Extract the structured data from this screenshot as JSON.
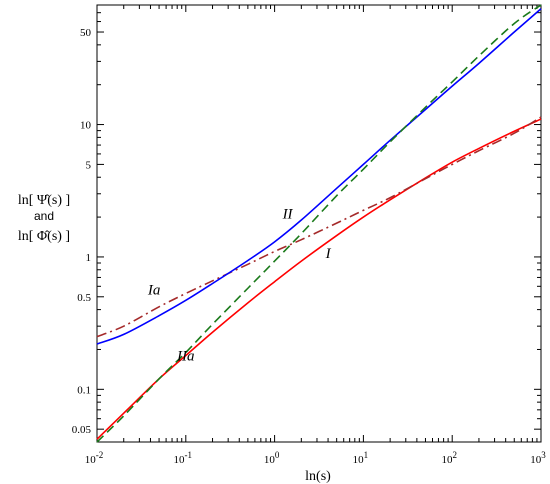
{
  "chart_data": {
    "type": "line",
    "title": "",
    "xlabel": "ln(s)",
    "ylabel_lines": [
      "ln[ Ψ̂(s) ]",
      "and",
      "ln[ Φ̂(s) ]"
    ],
    "x_scale": "log",
    "y_scale": "log",
    "xlim": [
      0.01,
      1000
    ],
    "ylim": [
      0.04,
      80
    ],
    "x_ticks": [
      {
        "value": 0.01,
        "base": "10",
        "exp": "-2"
      },
      {
        "value": 0.1,
        "base": "10",
        "exp": "-1"
      },
      {
        "value": 1,
        "base": "10",
        "exp": "0"
      },
      {
        "value": 10,
        "base": "10",
        "exp": "1"
      },
      {
        "value": 100,
        "base": "10",
        "exp": "2"
      },
      {
        "value": 1000,
        "base": "10",
        "exp": "3"
      }
    ],
    "y_ticks": [
      {
        "value": 0.05,
        "label": "0.05"
      },
      {
        "value": 0.1,
        "label": "0.1"
      },
      {
        "value": 0.5,
        "label": "0.5"
      },
      {
        "value": 1,
        "label": "1"
      },
      {
        "value": 5,
        "label": "5"
      },
      {
        "value": 10,
        "label": "10"
      },
      {
        "value": 50,
        "label": "50"
      }
    ],
    "grid": false,
    "series": [
      {
        "name": "I",
        "color": "#ff0000",
        "dash": "solid",
        "x": [
          0.01,
          0.02,
          0.05,
          0.1,
          0.2,
          0.5,
          1,
          2,
          5,
          10,
          20,
          50,
          100,
          200,
          500,
          1000
        ],
        "y": [
          0.042,
          0.066,
          0.12,
          0.18,
          0.27,
          0.45,
          0.65,
          0.93,
          1.45,
          2.0,
          2.7,
          3.95,
          5.2,
          6.6,
          8.9,
          11.0
        ]
      },
      {
        "name": "Ia",
        "color": "#a52a2a",
        "dash": "dashdot",
        "x": [
          0.01,
          0.02,
          0.05,
          0.1,
          0.2,
          0.5,
          1,
          2,
          5,
          10,
          20,
          50,
          100,
          200,
          500,
          1000
        ],
        "y": [
          0.25,
          0.3,
          0.42,
          0.53,
          0.66,
          0.88,
          1.1,
          1.35,
          1.8,
          2.25,
          2.8,
          3.9,
          5.0,
          6.35,
          8.6,
          11.4
        ]
      },
      {
        "name": "II",
        "color": "#0000ff",
        "dash": "solid",
        "x": [
          0.01,
          0.02,
          0.05,
          0.1,
          0.2,
          0.5,
          1,
          2,
          5,
          10,
          20,
          50,
          100,
          200,
          500,
          1000
        ],
        "y": [
          0.22,
          0.26,
          0.36,
          0.47,
          0.63,
          0.94,
          1.3,
          1.9,
          3.3,
          5.0,
          7.6,
          13.0,
          19.5,
          29.0,
          50.0,
          75.0
        ]
      },
      {
        "name": "IIa",
        "color": "#1a7a1a",
        "dash": "dashed",
        "x": [
          0.01,
          0.02,
          0.05,
          0.1,
          0.2,
          0.5,
          1,
          2,
          5,
          10,
          20,
          50,
          100,
          200,
          500,
          1000
        ],
        "y": [
          0.04,
          0.063,
          0.12,
          0.19,
          0.31,
          0.58,
          0.93,
          1.5,
          2.9,
          4.6,
          7.4,
          13.5,
          21.0,
          33.0,
          58.0,
          80.0
        ]
      }
    ],
    "annotations": [
      {
        "text": "I",
        "x": 4.0,
        "y": 0.98
      },
      {
        "text": "Ia",
        "x": 0.044,
        "y": 0.52
      },
      {
        "text": "II",
        "x": 1.4,
        "y": 1.95
      },
      {
        "text": "IIa",
        "x": 0.1,
        "y": 0.165
      }
    ]
  }
}
